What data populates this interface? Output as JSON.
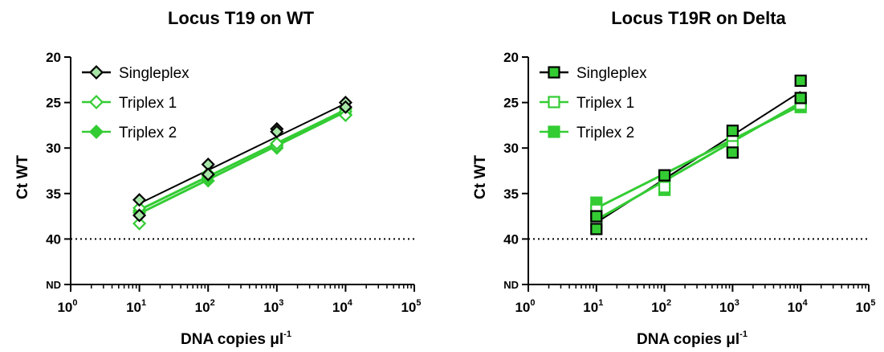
{
  "chart_data": [
    {
      "type": "scatter",
      "title": "Locus T19 on WT",
      "xlabel": "DNA copies μl",
      "xlabel_exponent": "-1",
      "ylabel": "Ct WT",
      "x_scale": "log10",
      "xlim": [
        1,
        100000
      ],
      "x_ticks": [
        {
          "base": "10",
          "exp": "0",
          "value": 1
        },
        {
          "base": "10",
          "exp": "1",
          "value": 10
        },
        {
          "base": "10",
          "exp": "2",
          "value": 100
        },
        {
          "base": "10",
          "exp": "3",
          "value": 1000
        },
        {
          "base": "10",
          "exp": "4",
          "value": 10000
        },
        {
          "base": "10",
          "exp": "5",
          "value": 100000
        }
      ],
      "y_inverted": true,
      "ylim": [
        20,
        45
      ],
      "y_ticks": [
        {
          "label": "20",
          "value": 20
        },
        {
          "label": "25",
          "value": 25
        },
        {
          "label": "30",
          "value": 30
        },
        {
          "label": "35",
          "value": 35
        },
        {
          "label": "40",
          "value": 40
        },
        {
          "label": "ND",
          "value": 45
        }
      ],
      "threshold_line": 40,
      "legend_position": "top-left",
      "series": [
        {
          "name": "Singleplex",
          "marker": "diamond",
          "fill": "#a8e6a8",
          "stroke": "#000000",
          "line": "#000000",
          "points": [
            [
              10,
              35.7
            ],
            [
              10,
              37.4
            ],
            [
              100,
              31.8
            ],
            [
              100,
              32.9
            ],
            [
              1000,
              27.9
            ],
            [
              1000,
              28.2
            ],
            [
              10000,
              25.0
            ],
            [
              10000,
              25.5
            ]
          ],
          "fit": [
            [
              10,
              36.1
            ],
            [
              10000,
              25.1
            ]
          ]
        },
        {
          "name": "Triplex 1",
          "marker": "diamond",
          "fill": "#ffffff",
          "stroke": "#33cc33",
          "line": "#33cc33",
          "points": [
            [
              10,
              38.3
            ],
            [
              10,
              36.6
            ],
            [
              100,
              33.0
            ],
            [
              100,
              32.8
            ],
            [
              1000,
              29.8
            ],
            [
              1000,
              29.5
            ],
            [
              10000,
              26.0
            ],
            [
              10000,
              26.4
            ]
          ],
          "fit": [
            [
              10,
              37.2
            ],
            [
              10000,
              26.0
            ]
          ]
        },
        {
          "name": "Triplex 2",
          "marker": "diamond",
          "fill": "#33cc33",
          "stroke": "#33cc33",
          "line": "#33cc33",
          "points": [
            [
              10,
              36.9
            ],
            [
              10,
              37.1
            ],
            [
              100,
              33.6
            ],
            [
              100,
              33.2
            ],
            [
              1000,
              29.6
            ],
            [
              1000,
              30.0
            ],
            [
              10000,
              25.7
            ],
            [
              10000,
              26.3
            ]
          ],
          "fit": [
            [
              10,
              36.8
            ],
            [
              10000,
              25.8
            ]
          ]
        }
      ]
    },
    {
      "type": "scatter",
      "title": "Locus T19R on Delta",
      "xlabel": "DNA copies μl",
      "xlabel_exponent": "-1",
      "ylabel": "Ct WT",
      "x_scale": "log10",
      "xlim": [
        1,
        100000
      ],
      "x_ticks": [
        {
          "base": "10",
          "exp": "0",
          "value": 1
        },
        {
          "base": "10",
          "exp": "1",
          "value": 10
        },
        {
          "base": "10",
          "exp": "2",
          "value": 100
        },
        {
          "base": "10",
          "exp": "3",
          "value": 1000
        },
        {
          "base": "10",
          "exp": "4",
          "value": 10000
        },
        {
          "base": "10",
          "exp": "5",
          "value": 100000
        }
      ],
      "y_inverted": true,
      "ylim": [
        20,
        45
      ],
      "y_ticks": [
        {
          "label": "20",
          "value": 20
        },
        {
          "label": "25",
          "value": 25
        },
        {
          "label": "30",
          "value": 30
        },
        {
          "label": "35",
          "value": 35
        },
        {
          "label": "40",
          "value": 40
        },
        {
          "label": "ND",
          "value": 45
        }
      ],
      "threshold_line": 40,
      "legend_position": "top-left",
      "series": [
        {
          "name": "Singleplex",
          "marker": "square",
          "fill": "#33cc33",
          "stroke": "#000000",
          "line": "#000000",
          "points": [
            [
              10,
              37.5
            ],
            [
              10,
              38.9
            ],
            [
              100,
              33.0
            ],
            [
              1000,
              28.1
            ],
            [
              1000,
              30.5
            ],
            [
              10000,
              22.6
            ],
            [
              10000,
              24.5
            ]
          ],
          "fit": [
            [
              10,
              38.2
            ],
            [
              10000,
              23.8
            ]
          ]
        },
        {
          "name": "Triplex 1",
          "marker": "square",
          "fill": "#ffffff",
          "stroke": "#33cc33",
          "line": "#33cc33",
          "points": [
            [
              10,
              38.0
            ],
            [
              10,
              36.8
            ],
            [
              100,
              33.4
            ],
            [
              100,
              34.3
            ],
            [
              1000,
              29.2
            ],
            [
              1000,
              29.8
            ],
            [
              10000,
              24.8
            ],
            [
              10000,
              25.2
            ]
          ],
          "fit": [
            [
              10,
              37.9
            ],
            [
              10000,
              25.0
            ]
          ]
        },
        {
          "name": "Triplex 2",
          "marker": "square",
          "fill": "#33cc33",
          "stroke": "#33cc33",
          "line": "#33cc33",
          "points": [
            [
              10,
              36.0
            ],
            [
              10,
              36.8
            ],
            [
              100,
              33.1
            ],
            [
              100,
              34.6
            ],
            [
              1000,
              29.4
            ],
            [
              1000,
              29.9
            ],
            [
              10000,
              25.0
            ],
            [
              10000,
              25.5
            ]
          ],
          "fit": [
            [
              10,
              36.6
            ],
            [
              10000,
              25.3
            ]
          ]
        }
      ]
    }
  ]
}
